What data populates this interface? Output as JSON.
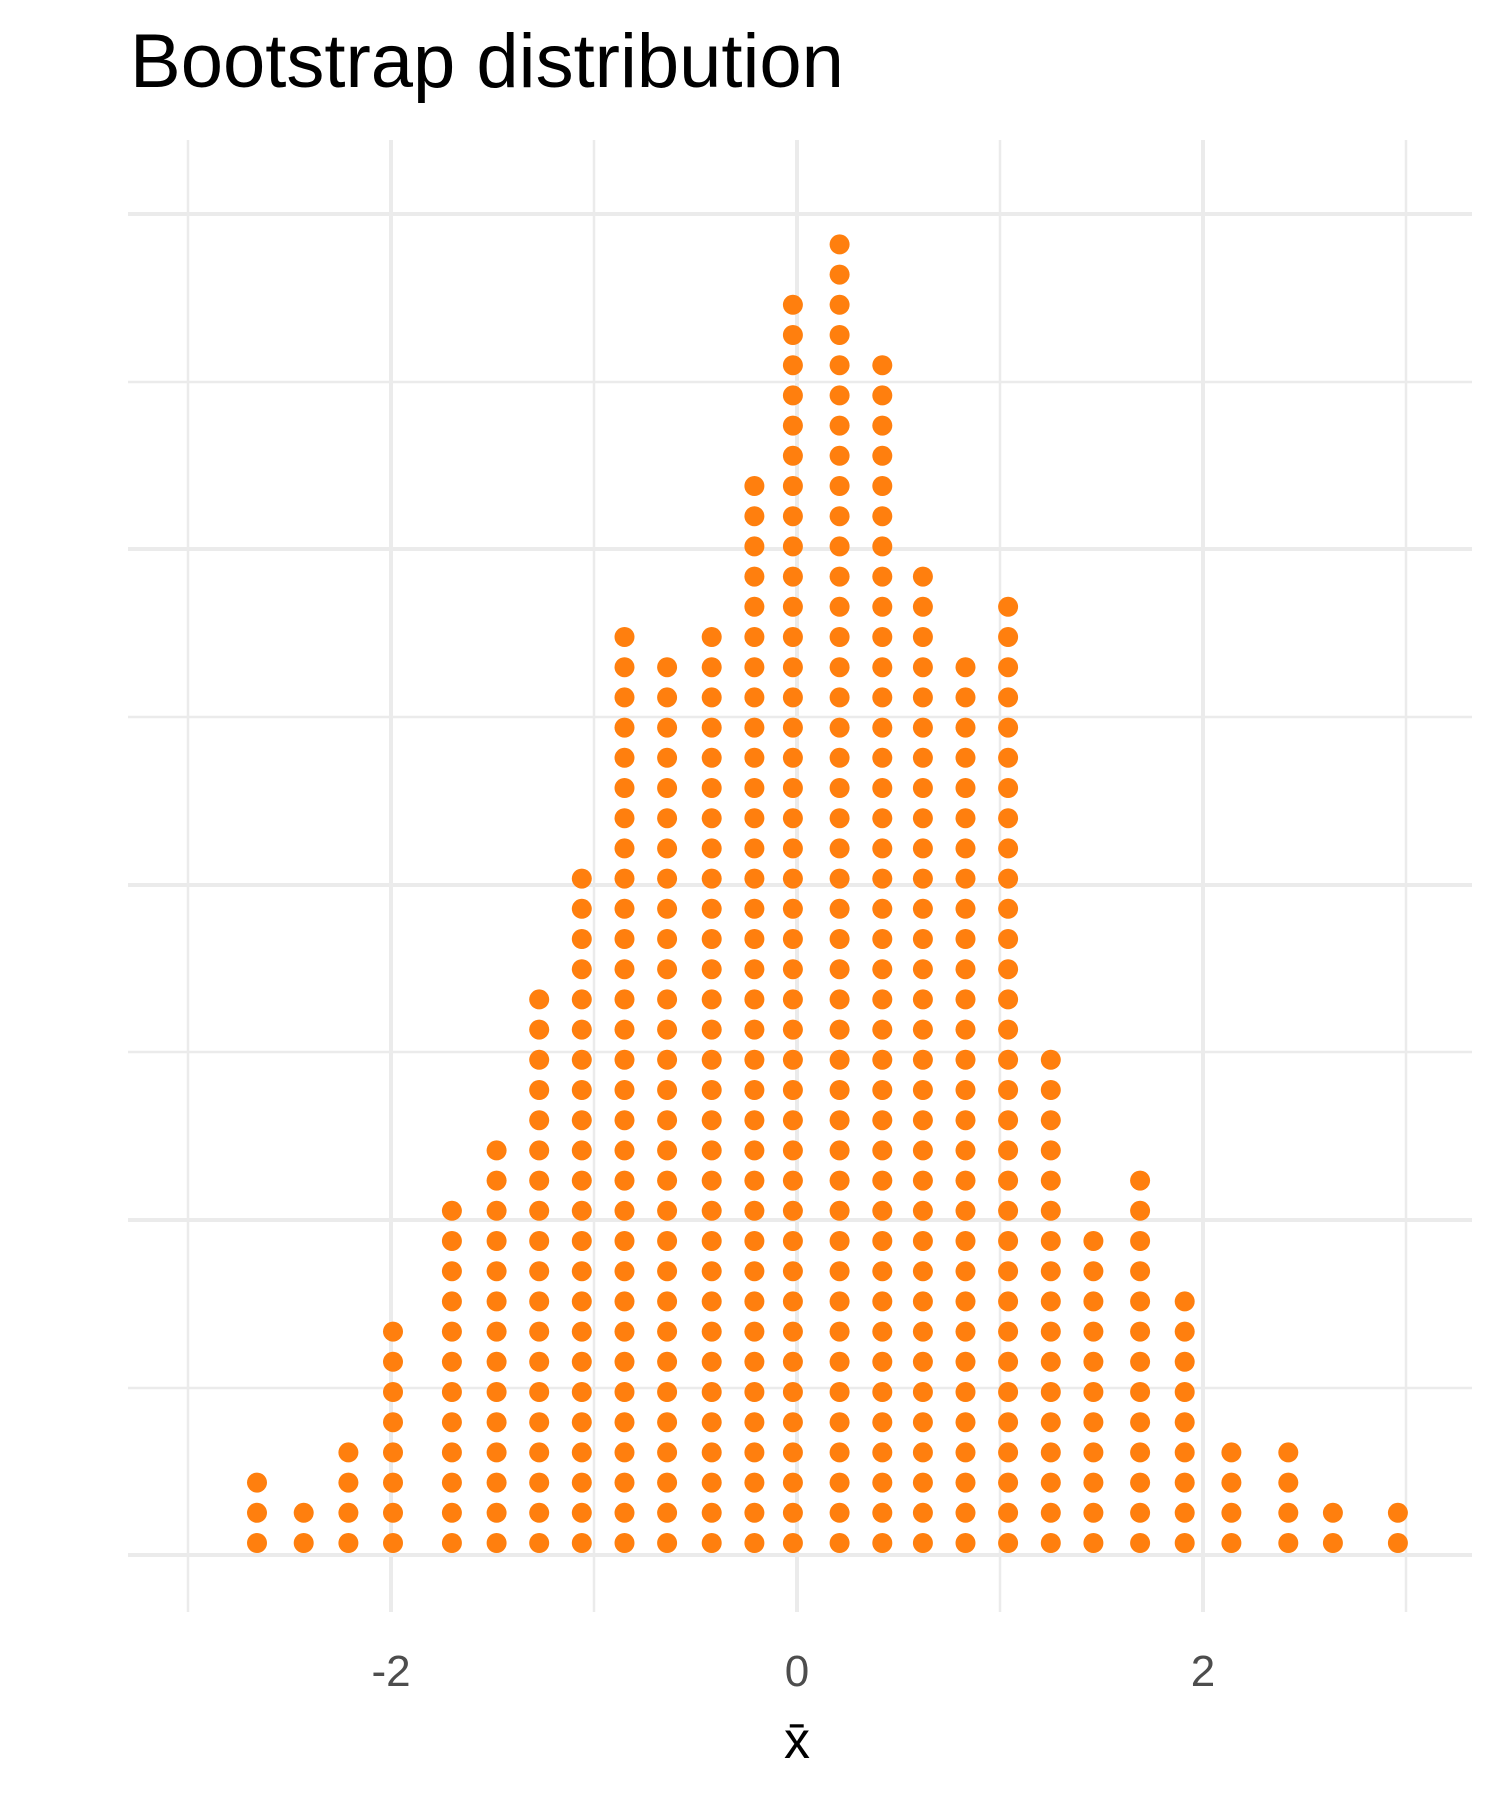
{
  "chart_data": {
    "type": "dotplot",
    "title": "Bootstrap distribution",
    "xlabel": "x̄",
    "ylabel": "",
    "xlim": [
      -3,
      3
    ],
    "x_ticks": [
      -2,
      0,
      2
    ],
    "x_tick_labels": [
      "-2",
      "0",
      "2"
    ],
    "grid": true,
    "dot_color": "#FF7F0E",
    "bins": [
      {
        "x": -2.66,
        "count": 3
      },
      {
        "x": -2.43,
        "count": 2
      },
      {
        "x": -2.21,
        "count": 4
      },
      {
        "x": -1.99,
        "count": 8
      },
      {
        "x": -1.7,
        "count": 12
      },
      {
        "x": -1.48,
        "count": 14
      },
      {
        "x": -1.27,
        "count": 19
      },
      {
        "x": -1.06,
        "count": 23
      },
      {
        "x": -0.85,
        "count": 31
      },
      {
        "x": -0.64,
        "count": 30
      },
      {
        "x": -0.42,
        "count": 31
      },
      {
        "x": -0.21,
        "count": 36
      },
      {
        "x": -0.02,
        "count": 42
      },
      {
        "x": 0.21,
        "count": 44
      },
      {
        "x": 0.42,
        "count": 40
      },
      {
        "x": 0.62,
        "count": 33
      },
      {
        "x": 0.83,
        "count": 30
      },
      {
        "x": 1.04,
        "count": 32
      },
      {
        "x": 1.25,
        "count": 17
      },
      {
        "x": 1.46,
        "count": 11
      },
      {
        "x": 1.69,
        "count": 13
      },
      {
        "x": 1.91,
        "count": 9
      },
      {
        "x": 2.14,
        "count": 4
      },
      {
        "x": 2.42,
        "count": 4
      },
      {
        "x": 2.64,
        "count": 2
      },
      {
        "x": 2.96,
        "count": 2
      }
    ]
  }
}
